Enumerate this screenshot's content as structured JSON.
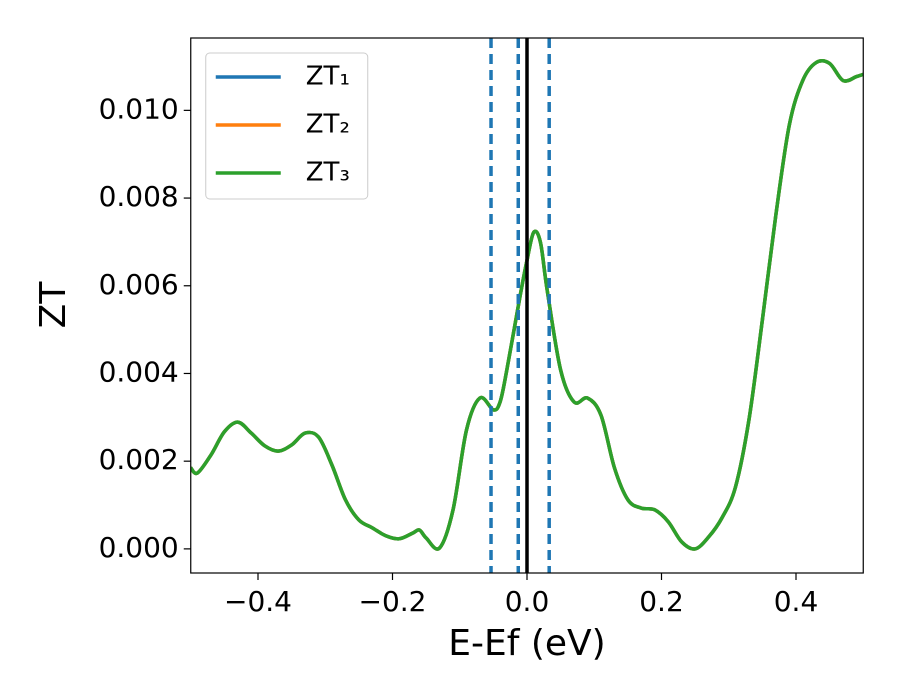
{
  "chart_data": {
    "type": "line",
    "x_label": "E-Ef (eV)",
    "y_label": "ZT",
    "x": [
      -0.5,
      -0.49,
      -0.47,
      -0.45,
      -0.43,
      -0.41,
      -0.39,
      -0.37,
      -0.35,
      -0.33,
      -0.31,
      -0.29,
      -0.27,
      -0.25,
      -0.23,
      -0.21,
      -0.19,
      -0.17,
      -0.16,
      -0.15,
      -0.13,
      -0.11,
      -0.09,
      -0.07,
      -0.05,
      -0.04,
      -0.03,
      -0.01,
      0.0,
      0.01,
      0.02,
      0.03,
      0.05,
      0.07,
      0.09,
      0.11,
      0.13,
      0.15,
      0.17,
      0.19,
      0.21,
      0.23,
      0.25,
      0.27,
      0.29,
      0.31,
      0.33,
      0.35,
      0.37,
      0.39,
      0.41,
      0.43,
      0.45,
      0.47,
      0.49,
      0.5
    ],
    "series": [
      {
        "name": "ZT₁",
        "color": "#1f77b4",
        "values": [
          0.00185,
          0.00173,
          0.00214,
          0.00267,
          0.00289,
          0.00264,
          0.00235,
          0.00223,
          0.00237,
          0.00264,
          0.00255,
          0.00191,
          0.00112,
          0.00066,
          0.00048,
          0.0003,
          0.00023,
          0.00036,
          0.00043,
          0.00025,
          2e-05,
          0.00089,
          0.00271,
          0.00344,
          0.00317,
          0.00335,
          0.00408,
          0.00579,
          0.00658,
          0.00722,
          0.00699,
          0.0059,
          0.00408,
          0.00335,
          0.00344,
          0.00305,
          0.00185,
          0.00112,
          0.00093,
          0.00089,
          0.00062,
          0.00016,
          0.0,
          0.00027,
          0.00071,
          0.00141,
          0.00294,
          0.00522,
          0.00761,
          0.00966,
          0.01068,
          0.01109,
          0.01107,
          0.01068,
          0.01077,
          0.01082
        ]
      },
      {
        "name": "ZT₂",
        "color": "#ff7f0e",
        "values": [
          0.00185,
          0.00173,
          0.00214,
          0.00267,
          0.00289,
          0.00264,
          0.00235,
          0.00223,
          0.00237,
          0.00264,
          0.00255,
          0.00191,
          0.00112,
          0.00066,
          0.00048,
          0.0003,
          0.00023,
          0.00036,
          0.00043,
          0.00025,
          2e-05,
          0.00089,
          0.00271,
          0.00344,
          0.00317,
          0.00335,
          0.00408,
          0.00579,
          0.00658,
          0.00722,
          0.00699,
          0.0059,
          0.00408,
          0.00335,
          0.00344,
          0.00305,
          0.00185,
          0.00112,
          0.00093,
          0.00089,
          0.00062,
          0.00016,
          0.0,
          0.00027,
          0.00071,
          0.00141,
          0.00294,
          0.00522,
          0.00761,
          0.00966,
          0.01068,
          0.01109,
          0.01107,
          0.01068,
          0.01077,
          0.01082
        ]
      },
      {
        "name": "ZT₃",
        "color": "#2ca02c",
        "values": [
          0.00185,
          0.00173,
          0.00214,
          0.00267,
          0.00289,
          0.00264,
          0.00235,
          0.00223,
          0.00237,
          0.00264,
          0.00255,
          0.00191,
          0.00112,
          0.00066,
          0.00048,
          0.0003,
          0.00023,
          0.00036,
          0.00043,
          0.00025,
          2e-05,
          0.00089,
          0.00271,
          0.00344,
          0.00317,
          0.00335,
          0.00408,
          0.00579,
          0.00658,
          0.00722,
          0.00699,
          0.0059,
          0.00408,
          0.00335,
          0.00344,
          0.00305,
          0.00185,
          0.00112,
          0.00093,
          0.00089,
          0.00062,
          0.00016,
          0.0,
          0.00027,
          0.00071,
          0.00141,
          0.00294,
          0.00522,
          0.00761,
          0.00966,
          0.01068,
          0.01109,
          0.01107,
          0.01068,
          0.01077,
          0.01082
        ]
      }
    ],
    "vlines": [
      {
        "x": -0.0535,
        "color": "#1f77b4",
        "style": "dashed"
      },
      {
        "x": -0.013,
        "color": "#1f77b4",
        "style": "dashed"
      },
      {
        "x": 0.033,
        "color": "#1f77b4",
        "style": "dashed"
      },
      {
        "x": 0.0,
        "color": "#000000",
        "style": "solid"
      }
    ],
    "xlim": [
      -0.5,
      0.5
    ],
    "xticks": [
      {
        "value": -0.4,
        "label": "−0.4"
      },
      {
        "value": -0.2,
        "label": "−0.2"
      },
      {
        "value": 0.0,
        "label": "0.0"
      },
      0.2,
      0.4
    ],
    "ylim": [
      -0.00055,
      0.01165
    ],
    "yticks": [
      {
        "value": 0.0,
        "label": "0.000"
      },
      {
        "value": 0.002,
        "label": "0.002"
      },
      {
        "value": 0.004,
        "label": "0.004"
      },
      {
        "value": 0.006,
        "label": "0.006"
      },
      {
        "value": 0.008,
        "label": "0.008"
      },
      {
        "value": 0.01,
        "label": "0.010"
      }
    ],
    "grid": false,
    "legend": "upper left"
  }
}
